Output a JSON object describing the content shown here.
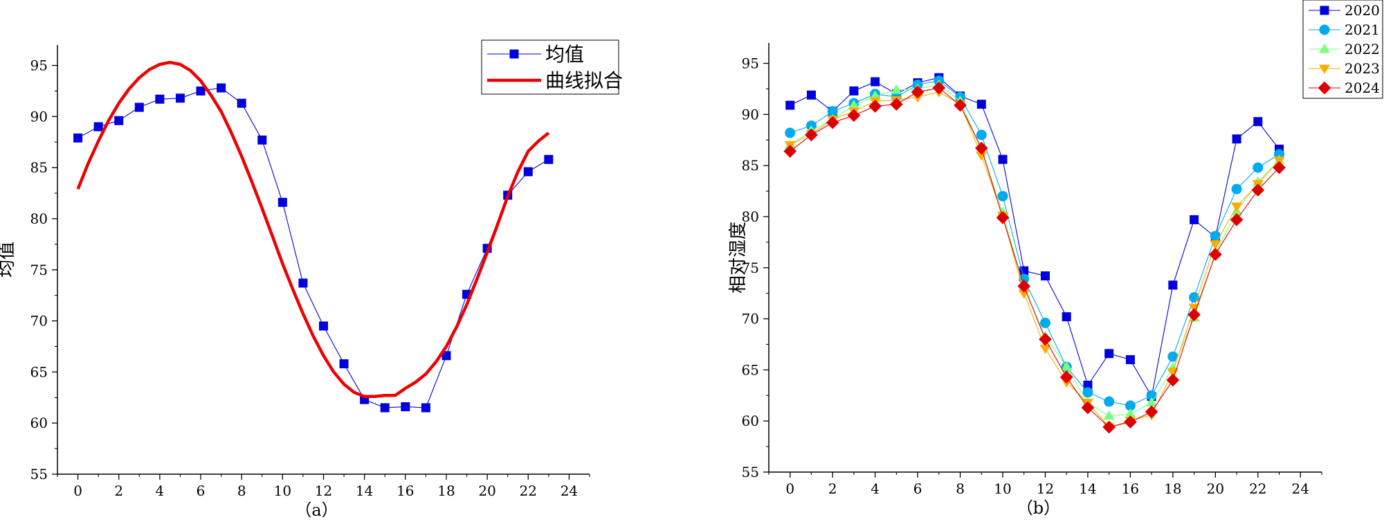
{
  "chart_data": [
    {
      "type": "line",
      "caption": "（a）",
      "ylabel": "均值",
      "xlim": [
        -1,
        25
      ],
      "ylim": [
        55,
        97
      ],
      "xticks": [
        0,
        2,
        4,
        6,
        8,
        10,
        12,
        14,
        16,
        18,
        20,
        22,
        24
      ],
      "yticks": [
        55,
        60,
        65,
        70,
        75,
        80,
        85,
        90,
        95
      ],
      "legend_position": "top-right",
      "series": [
        {
          "name": "均值",
          "color": "#0000dd",
          "marker": "square",
          "x": [
            0,
            1,
            2,
            3,
            4,
            5,
            6,
            7,
            8,
            9,
            10,
            11,
            12,
            13,
            14,
            15,
            16,
            17,
            18,
            19,
            20,
            21,
            22,
            23
          ],
          "values": [
            87.9,
            89.0,
            89.6,
            90.9,
            91.7,
            91.8,
            92.5,
            92.8,
            91.3,
            87.7,
            81.6,
            73.7,
            69.5,
            65.8,
            62.3,
            61.5,
            61.6,
            61.5,
            66.6,
            72.6,
            77.1,
            82.3,
            84.6,
            85.8
          ]
        },
        {
          "name": "曲线拟合",
          "color": "#ee0000",
          "marker": "none",
          "x": [
            0,
            0.5,
            1,
            1.5,
            2,
            2.5,
            3,
            3.5,
            4,
            4.5,
            5,
            5.5,
            6,
            6.5,
            7,
            7.5,
            8,
            8.5,
            9,
            9.5,
            10,
            10.5,
            11,
            11.5,
            12,
            12.5,
            13,
            13.5,
            14,
            14.5,
            15,
            15.5,
            16,
            16.5,
            17,
            17.5,
            18,
            18.5,
            19,
            19.5,
            20,
            20.5,
            21,
            21.5,
            22,
            22.5,
            23
          ],
          "values": [
            82.9,
            85.4,
            87.6,
            89.6,
            91.3,
            92.7,
            93.8,
            94.6,
            95.1,
            95.3,
            95.1,
            94.5,
            93.5,
            92.1,
            90.5,
            88.4,
            86.1,
            83.6,
            81.0,
            78.3,
            75.6,
            73.1,
            70.7,
            68.5,
            66.6,
            65.0,
            63.8,
            63.0,
            62.6,
            62.6,
            62.7,
            62.7,
            63.4,
            64.0,
            64.8,
            66.0,
            67.5,
            69.4,
            71.6,
            74.1,
            76.7,
            79.4,
            82.2,
            84.6,
            86.6,
            87.6,
            88.4
          ]
        }
      ]
    },
    {
      "type": "line",
      "caption": "（b）",
      "ylabel": "相对湿度",
      "xlim": [
        -1,
        25
      ],
      "ylim": [
        55,
        97
      ],
      "xticks": [
        0,
        2,
        4,
        6,
        8,
        10,
        12,
        14,
        16,
        18,
        20,
        22,
        24
      ],
      "yticks": [
        55,
        60,
        65,
        70,
        75,
        80,
        85,
        90,
        95
      ],
      "legend_position": "top-right",
      "series": [
        {
          "name": "2020",
          "color": "#0000dd",
          "marker": "square",
          "x": [
            0,
            1,
            2,
            3,
            4,
            5,
            6,
            7,
            8,
            9,
            10,
            11,
            12,
            13,
            14,
            15,
            16,
            17,
            18,
            19,
            20,
            21,
            22,
            23
          ],
          "values": [
            90.9,
            91.9,
            90.3,
            92.3,
            93.2,
            92.0,
            93.1,
            93.6,
            91.8,
            91.0,
            85.6,
            74.7,
            74.2,
            70.2,
            63.5,
            66.6,
            66.0,
            62.4,
            73.3,
            79.7,
            78.0,
            87.6,
            89.3,
            86.6
          ]
        },
        {
          "name": "2021",
          "color": "#00aaee",
          "marker": "circle",
          "x": [
            0,
            1,
            2,
            3,
            4,
            5,
            6,
            7,
            8,
            9,
            10,
            11,
            12,
            13,
            14,
            15,
            16,
            17,
            18,
            19,
            20,
            21,
            22,
            23
          ],
          "values": [
            88.2,
            88.9,
            90.3,
            91.1,
            92.0,
            91.7,
            92.9,
            93.3,
            91.7,
            88.0,
            82.0,
            73.9,
            69.6,
            65.3,
            62.8,
            61.9,
            61.5,
            62.5,
            66.3,
            72.1,
            78.1,
            82.7,
            84.8,
            86.1
          ]
        },
        {
          "name": "2022",
          "color": "#7dff7d",
          "marker": "triangle-up",
          "x": [
            0,
            1,
            2,
            3,
            4,
            5,
            6,
            7,
            8,
            9,
            10,
            11,
            12,
            13,
            14,
            15,
            16,
            17,
            18,
            19,
            20,
            21,
            22,
            23
          ],
          "values": [
            87.0,
            88.4,
            89.5,
            90.9,
            91.8,
            92.4,
            92.5,
            92.9,
            91.3,
            86.5,
            80.4,
            73.0,
            68.3,
            65.3,
            61.8,
            60.5,
            60.7,
            61.8,
            65.2,
            70.1,
            76.4,
            80.5,
            83.4,
            85.5
          ]
        },
        {
          "name": "2023",
          "color": "#ffaa00",
          "marker": "triangle-down",
          "x": [
            0,
            1,
            2,
            3,
            4,
            5,
            6,
            7,
            8,
            9,
            10,
            11,
            12,
            13,
            14,
            15,
            16,
            17,
            18,
            19,
            20,
            21,
            22,
            23
          ],
          "values": [
            87.0,
            88.1,
            89.5,
            90.3,
            91.3,
            91.4,
            91.7,
            92.2,
            91.0,
            86.0,
            80.1,
            72.5,
            67.1,
            63.8,
            61.8,
            59.4,
            60.0,
            60.6,
            64.8,
            71.1,
            77.3,
            81.0,
            83.2,
            85.5
          ]
        },
        {
          "name": "2024",
          "color": "#dd0000",
          "marker": "diamond",
          "x": [
            0,
            1,
            2,
            3,
            4,
            5,
            6,
            7,
            8,
            9,
            10,
            11,
            12,
            13,
            14,
            15,
            16,
            17,
            18,
            19,
            20,
            21,
            22,
            23
          ],
          "values": [
            86.4,
            88.0,
            89.2,
            89.9,
            90.8,
            91.0,
            92.2,
            92.6,
            90.9,
            86.7,
            79.9,
            73.2,
            68.0,
            64.3,
            61.3,
            59.4,
            59.9,
            60.9,
            64.0,
            70.4,
            76.3,
            79.7,
            82.6,
            84.8
          ]
        }
      ]
    }
  ]
}
